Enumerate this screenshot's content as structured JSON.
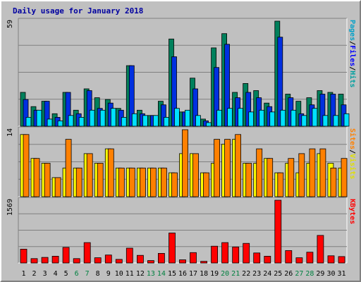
{
  "chart_data": {
    "type": "bar",
    "title": "Daily usage for January 2018",
    "categories": [
      "1",
      "2",
      "3",
      "4",
      "5",
      "6",
      "7",
      "8",
      "9",
      "10",
      "11",
      "12",
      "13",
      "14",
      "15",
      "16",
      "17",
      "18",
      "19",
      "20",
      "21",
      "22",
      "23",
      "24",
      "25",
      "26",
      "27",
      "28",
      "29",
      "30",
      "31"
    ],
    "weekend_days": [
      "6",
      "7",
      "13",
      "14",
      "20",
      "21",
      "27",
      "28"
    ],
    "panels": [
      {
        "name": "top",
        "ymax_label": "59",
        "ymax": 59,
        "legend": [
          {
            "text": "Pages",
            "color": "#00a0c8"
          },
          {
            "text": "/",
            "color": "#000000"
          },
          {
            "text": "Files",
            "color": "#0000ff"
          },
          {
            "text": "/",
            "color": "#000000"
          },
          {
            "text": "Hits",
            "color": "#00a0a0"
          }
        ],
        "series": [
          {
            "name": "Hits",
            "color": "#00805c",
            "values": [
              19,
              11,
              14,
              7,
              19,
              9,
              21,
              16,
              15,
              10,
              34,
              9,
              6,
              14,
              49,
              8,
              27,
              4,
              44,
              52,
              19,
              24,
              20,
              13,
              59,
              18,
              14,
              16,
              20,
              19,
              18
            ]
          },
          {
            "name": "Files",
            "color": "#0030e0",
            "values": [
              15,
              9,
              14,
              5,
              19,
              7,
              20,
              10,
              13,
              9,
              34,
              7,
              6,
              12,
              39,
              8,
              21,
              3,
              33,
              46,
              16,
              19,
              16,
              11,
              50,
              16,
              7,
              12,
              18,
              18,
              12
            ]
          },
          {
            "name": "Pages",
            "color": "#00e0ff",
            "values": [
              5,
              9,
              4,
              3,
              6,
              5,
              9,
              9,
              10,
              5,
              7,
              6,
              6,
              5,
              10,
              9,
              6,
              2,
              9,
              10,
              10,
              8,
              9,
              8,
              9,
              9,
              6,
              10,
              6,
              6,
              7
            ]
          }
        ]
      },
      {
        "name": "middle",
        "ymax_label": "14",
        "ymax": 14,
        "legend": [
          {
            "text": "Sites",
            "color": "#ff8000"
          },
          {
            "text": "/",
            "color": "#000000"
          },
          {
            "text": "Visits",
            "color": "#e0e000"
          }
        ],
        "series": [
          {
            "name": "Visits",
            "color": "#ffff00",
            "values": [
              13,
              8,
              7,
              4,
              6,
              6,
              9,
              7,
              10,
              6,
              6,
              6,
              6,
              6,
              5,
              9,
              9,
              5,
              7,
              11,
              12,
              7,
              7,
              8,
              5,
              7,
              5,
              7,
              9,
              7,
              6
            ]
          },
          {
            "name": "Sites",
            "color": "#ff8000",
            "values": [
              13,
              8,
              7,
              4,
              12,
              6,
              9,
              7,
              10,
              6,
              6,
              6,
              6,
              6,
              5,
              14,
              9,
              5,
              12,
              12,
              13,
              7,
              10,
              8,
              5,
              8,
              9,
              10,
              10,
              6,
              8
            ]
          }
        ]
      },
      {
        "name": "bottom",
        "ymax_label": "1569",
        "ymax": 1569,
        "legend": [
          {
            "text": "KBytes",
            "color": "#ff0000"
          }
        ],
        "series": [
          {
            "name": "KBytes",
            "color": "#ff0000",
            "values": [
              346,
              110,
              140,
              170,
              390,
              110,
              510,
              130,
              200,
              90,
              370,
              190,
              60,
              240,
              750,
              80,
              260,
              40,
              420,
              510,
              400,
              490,
              250,
              170,
              1569,
              310,
              130,
              270,
              690,
              180,
              160
            ]
          }
        ]
      }
    ]
  }
}
